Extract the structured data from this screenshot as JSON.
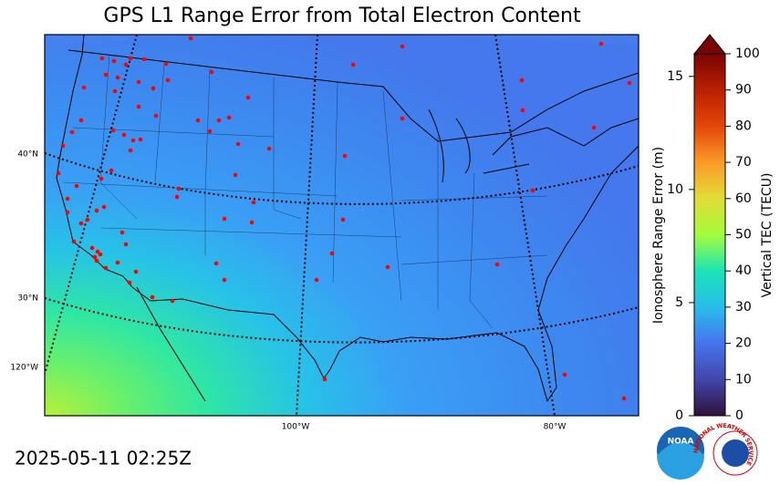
{
  "header": {
    "title": "GPS L1 Range Error from Total Electron Content"
  },
  "map": {
    "lat_labels": [
      "40°N",
      "30°N"
    ],
    "lon_labels": [
      "120°W",
      "100°W",
      "80°W"
    ]
  },
  "colorbar": {
    "left_label": "Ionosphere Range Error (m)",
    "right_label": "Vertical TEC (TECU)",
    "left_lim": [
      0,
      16
    ],
    "left_ticks": [
      0,
      5,
      10,
      15
    ],
    "right_lim": [
      0,
      100
    ],
    "right_ticks": [
      0,
      10,
      20,
      30,
      40,
      50,
      60,
      70,
      80,
      90,
      100
    ]
  },
  "footer": {
    "timestamp": "2025-05-11 02:25Z"
  },
  "logos": {
    "noaa": "NOAA",
    "nws": "NATIONAL WEATHER SERVICE"
  }
}
